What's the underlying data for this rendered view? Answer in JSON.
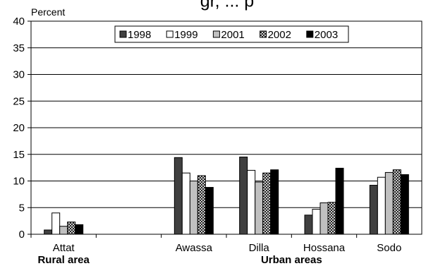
{
  "chart_data": {
    "type": "bar",
    "title_fragment": "gr, ... p",
    "ylabel": "Percent",
    "ylim": [
      0,
      40
    ],
    "yticks": [
      0,
      5,
      10,
      15,
      20,
      25,
      30,
      35,
      40
    ],
    "categories": [
      "Attat",
      "",
      "Awassa",
      "Dilla",
      "Hossana",
      "Sodo"
    ],
    "group_labels": [
      {
        "text": "Rural area",
        "category_index": 0
      },
      {
        "text": "Urban areas",
        "category_index": 3.5
      }
    ],
    "legend_position": "top-right",
    "grid": "horizontal",
    "series": [
      {
        "name": "1998",
        "fill": "#404040",
        "pattern": "solid",
        "values": [
          0.8,
          null,
          14.4,
          14.5,
          3.6,
          9.2
        ]
      },
      {
        "name": "1999",
        "fill": "#ffffff",
        "pattern": "solid",
        "values": [
          4.0,
          null,
          11.5,
          12.0,
          4.7,
          10.7
        ]
      },
      {
        "name": "2001",
        "fill": "#c0c0c0",
        "pattern": "solid",
        "values": [
          1.5,
          null,
          10.0,
          9.8,
          5.9,
          11.6
        ]
      },
      {
        "name": "2002",
        "fill": "#ffffff",
        "pattern": "crosshatch",
        "values": [
          2.3,
          null,
          11.0,
          11.5,
          6.0,
          12.1
        ]
      },
      {
        "name": "2003",
        "fill": "#000000",
        "pattern": "solid",
        "values": [
          1.8,
          null,
          8.8,
          12.1,
          12.4,
          11.2
        ]
      }
    ]
  }
}
